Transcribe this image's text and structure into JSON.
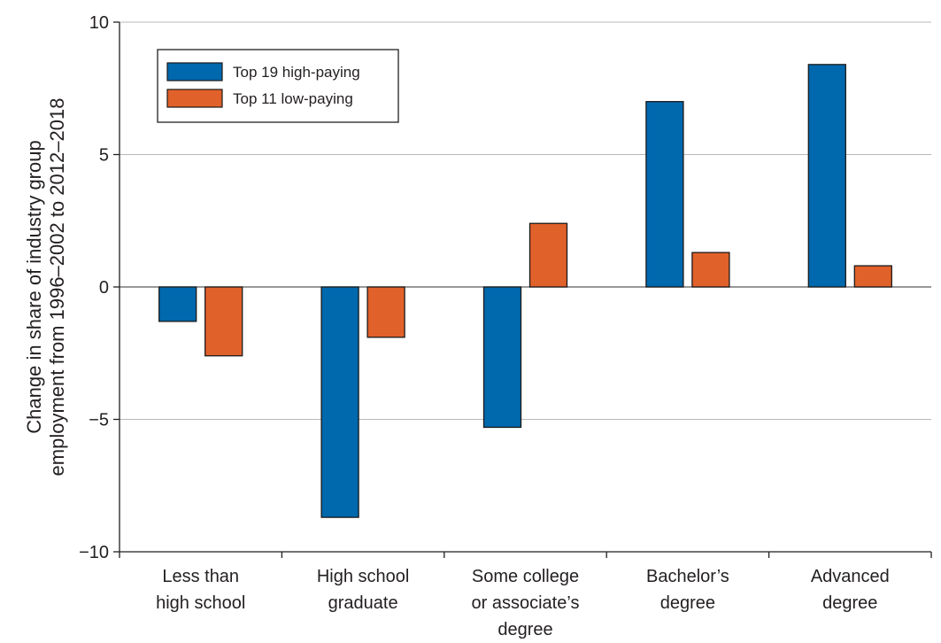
{
  "chart_data": {
    "type": "bar",
    "title": "",
    "xlabel": "",
    "ylabel": [
      "Change in share of industry group",
      "employment from 1996–2002 to 2012–2018"
    ],
    "ylim": [
      -10,
      10
    ],
    "yticks": [
      10,
      5,
      0,
      -5,
      -10
    ],
    "ytick_labels": [
      "10",
      "5",
      "0",
      "−5",
      "−10"
    ],
    "grid": true,
    "legend_position": "top-left",
    "categories": [
      [
        "Less than",
        "high school"
      ],
      [
        "High school",
        "graduate"
      ],
      [
        "Some college",
        "or associate’s",
        "degree"
      ],
      [
        "Bachelor’s",
        "degree"
      ],
      [
        "Advanced",
        "degree"
      ]
    ],
    "series": [
      {
        "name": "Top 19 high-paying",
        "color": "#0068ad",
        "values": [
          -1.3,
          -8.7,
          -5.3,
          7.0,
          8.4
        ]
      },
      {
        "name": "Top 11 low-paying",
        "color": "#e1612a",
        "values": [
          -2.6,
          -1.9,
          2.4,
          1.3,
          0.8
        ]
      }
    ]
  }
}
